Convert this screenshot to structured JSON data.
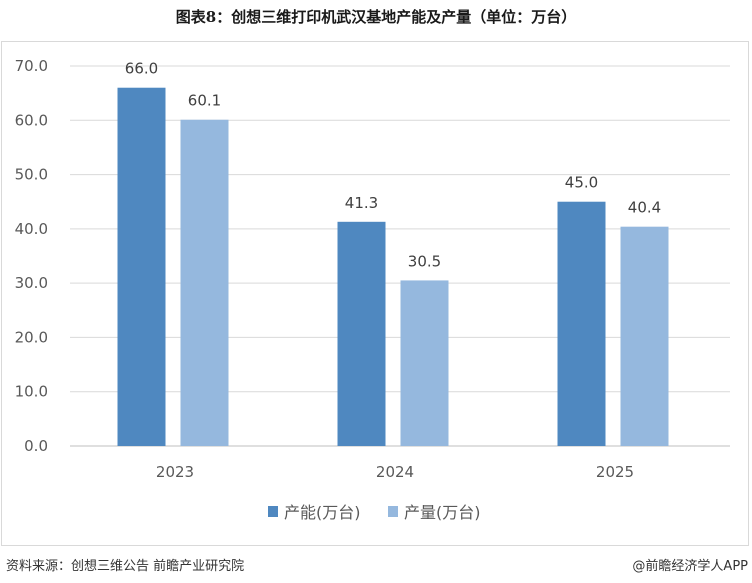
{
  "title": "图表8：创想三维打印机武汉基地产能及产量（单位：万台）",
  "chart_data": {
    "type": "bar",
    "categories": [
      "2023",
      "2024",
      "2025"
    ],
    "series": [
      {
        "name": "产能(万台)",
        "values": [
          66.0,
          41.3,
          45.0
        ],
        "color": "#4f88c0"
      },
      {
        "name": "产量(万台)",
        "values": [
          60.1,
          30.5,
          40.4
        ],
        "color": "#95b8de"
      }
    ],
    "ylim": [
      0,
      70
    ],
    "yticks": [
      "0.0",
      "10.0",
      "20.0",
      "30.0",
      "40.0",
      "50.0",
      "60.0",
      "70.0"
    ],
    "data_labels": [
      [
        "66.0",
        "41.3",
        "45.0"
      ],
      [
        "60.1",
        "30.5",
        "40.4"
      ]
    ],
    "grid": true,
    "legend": "bottom"
  },
  "footer": {
    "source": "资料来源：创想三维公告 前瞻产业研究院",
    "brand": "@前瞻经济学人APP"
  }
}
